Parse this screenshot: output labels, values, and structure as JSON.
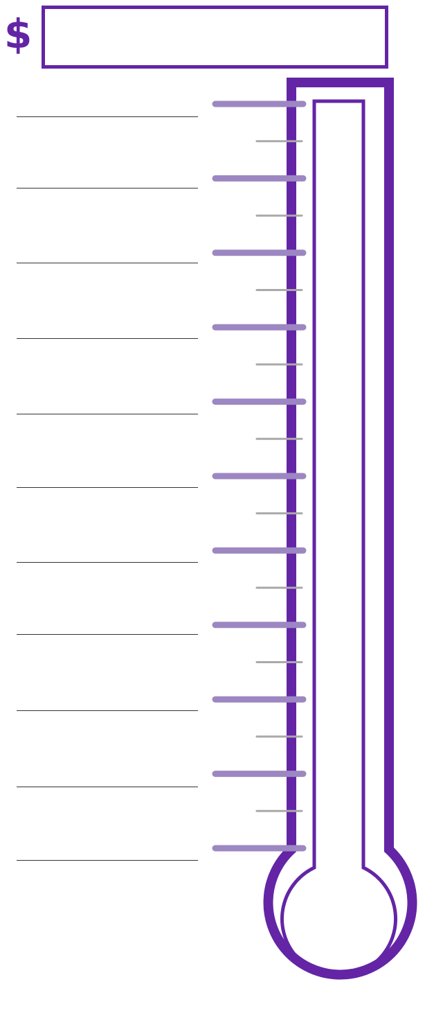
{
  "goal": {
    "currency_symbol": "$",
    "amount": ""
  },
  "scale": {
    "major_tick_count": 11,
    "minor_tick_count": 10,
    "label_values": [
      "",
      "",
      "",
      "",
      "",
      "",
      "",
      "",
      "",
      "",
      ""
    ]
  },
  "colors": {
    "brand_purple": "#6325a5",
    "major_tick": "#9c87c2",
    "minor_tick": "#a9a9a9",
    "label_line": "#333333",
    "background": "#ffffff"
  }
}
